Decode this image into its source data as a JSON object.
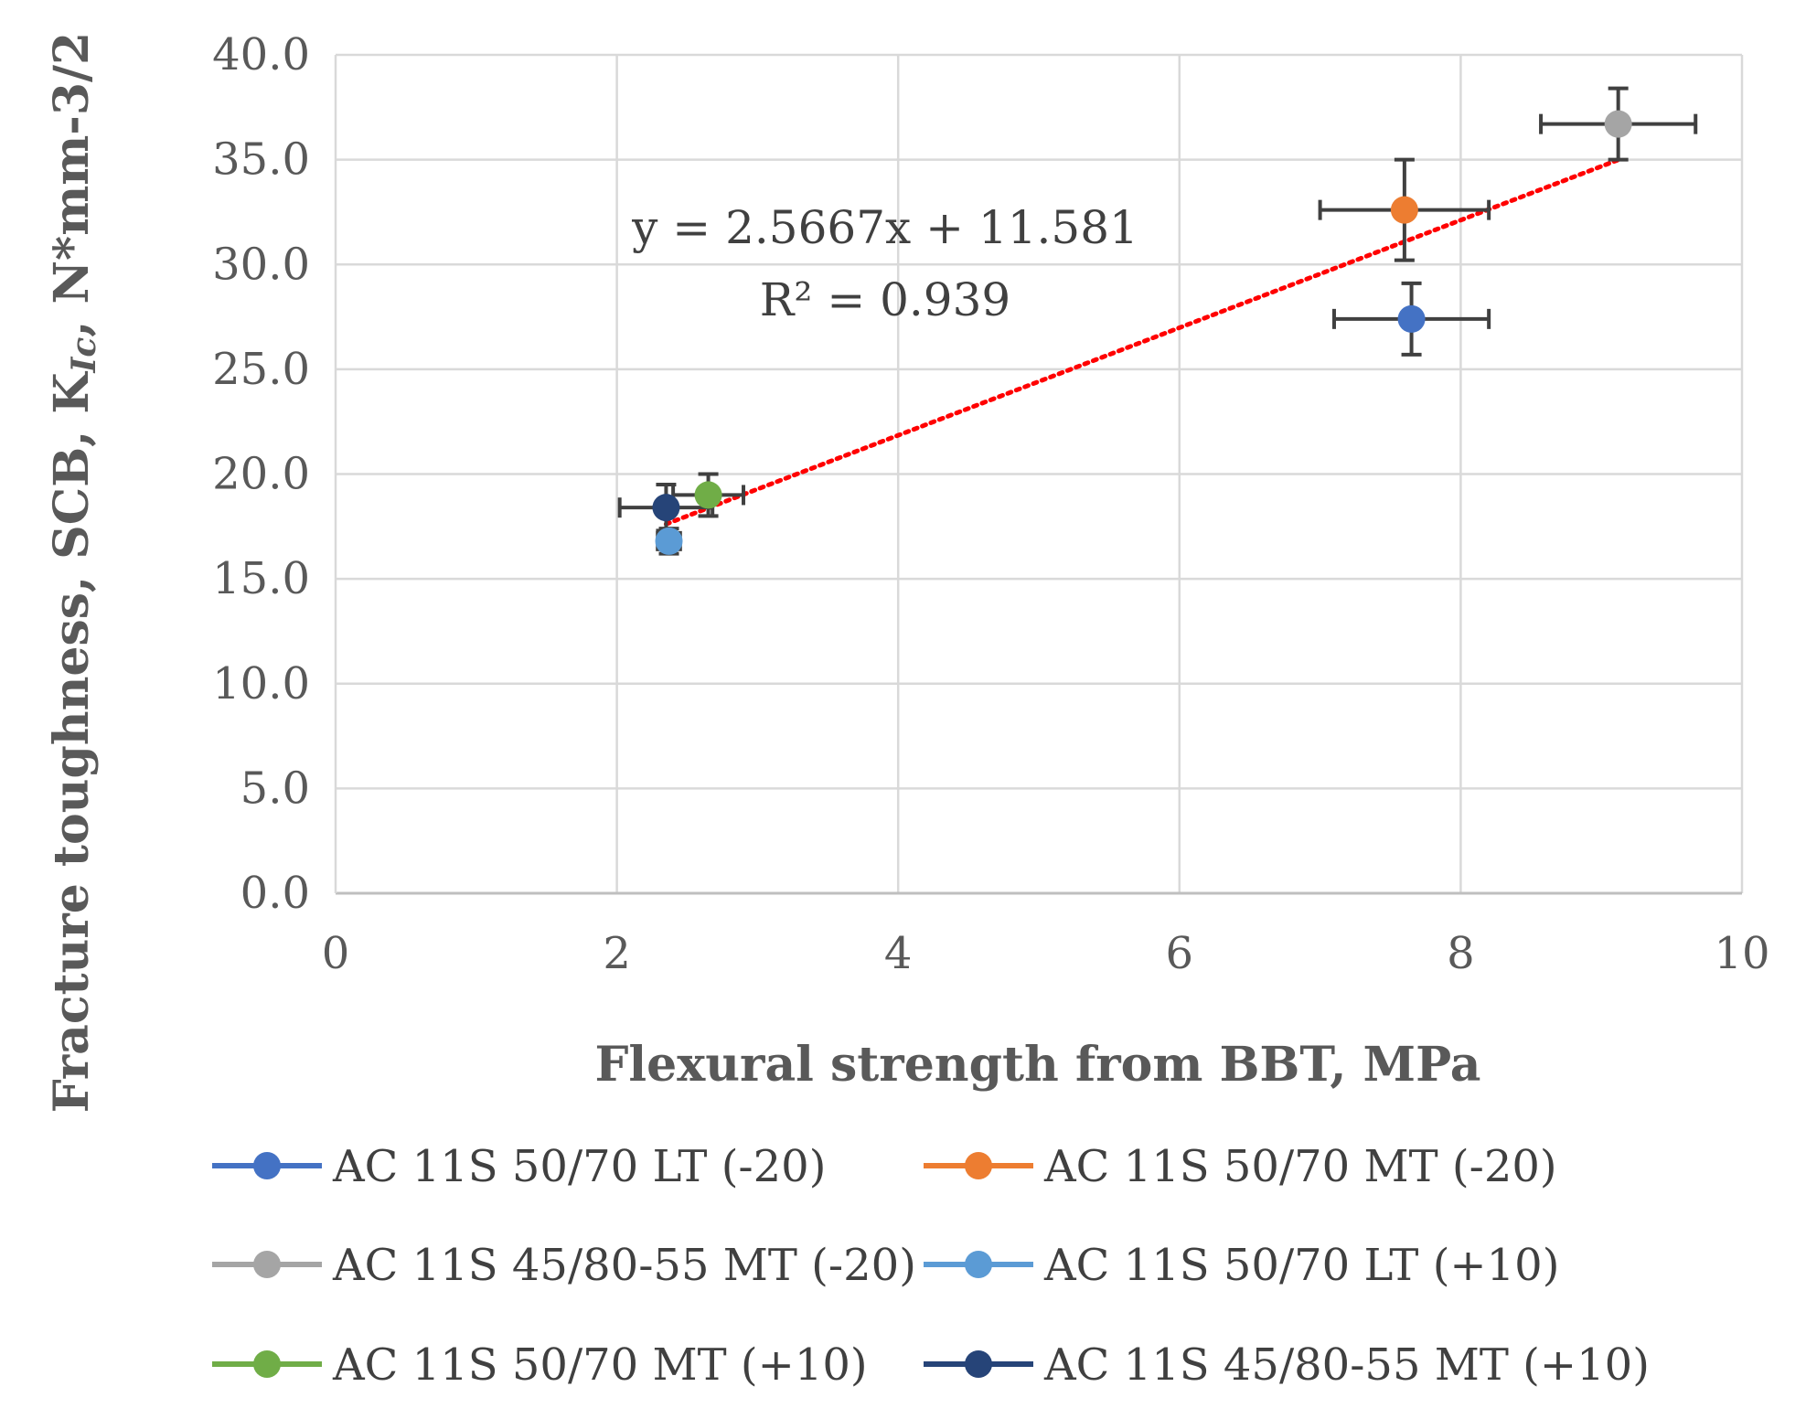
{
  "chart_data": {
    "type": "scatter",
    "xlabel": "Flexural strength from BBT, MPa",
    "ylabel": {
      "main": "Fracture toughness, SCB, K",
      "sub": "Ic",
      "unit": ", N*mm-3/2"
    },
    "xlim": [
      0,
      10
    ],
    "ylim": [
      0,
      40
    ],
    "x_ticks": [
      "0",
      "2",
      "4",
      "6",
      "8",
      "10"
    ],
    "y_ticks": [
      "0.0",
      "5.0",
      "10.0",
      "15.0",
      "20.0",
      "25.0",
      "30.0",
      "35.0",
      "40.0"
    ],
    "grid": true,
    "legend_position": "bottom",
    "series": [
      {
        "name": "AC 11S 50/70 LT (-20)",
        "color": "#4472C4",
        "x": 7.65,
        "y": 27.4,
        "x_err": 0.55,
        "y_err": 1.7
      },
      {
        "name": "AC 11S 50/70 MT (-20)",
        "color": "#ED7D31",
        "x": 7.6,
        "y": 32.6,
        "x_err": 0.6,
        "y_err": 2.4
      },
      {
        "name": "AC 11S 45/80-55 MT (-20)",
        "color": "#A5A5A5",
        "x": 9.12,
        "y": 36.7,
        "x_err": 0.55,
        "y_err": 1.7
      },
      {
        "name": "AC 11S 50/70 LT (+10)",
        "color": "#5B9BD5",
        "x": 2.37,
        "y": 16.8,
        "x_err": 0.08,
        "y_err": 0.6
      },
      {
        "name": "AC 11S 50/70 MT (+10)",
        "color": "#70AD47",
        "x": 2.65,
        "y": 19.0,
        "x_err": 0.25,
        "y_err": 1.0
      },
      {
        "name": "AC 11S 45/80-55 MT (+10)",
        "color": "#264478",
        "x": 2.35,
        "y": 18.4,
        "x_err": 0.33,
        "y_err": 1.1
      }
    ],
    "trendline": {
      "type": "linear",
      "color": "#FF0000",
      "slope": 2.5667,
      "intercept": 11.581,
      "x_range": [
        2.35,
        9.12
      ],
      "equation": "y = 2.5667x + 11.581",
      "r2": "R² = 0.939"
    }
  }
}
